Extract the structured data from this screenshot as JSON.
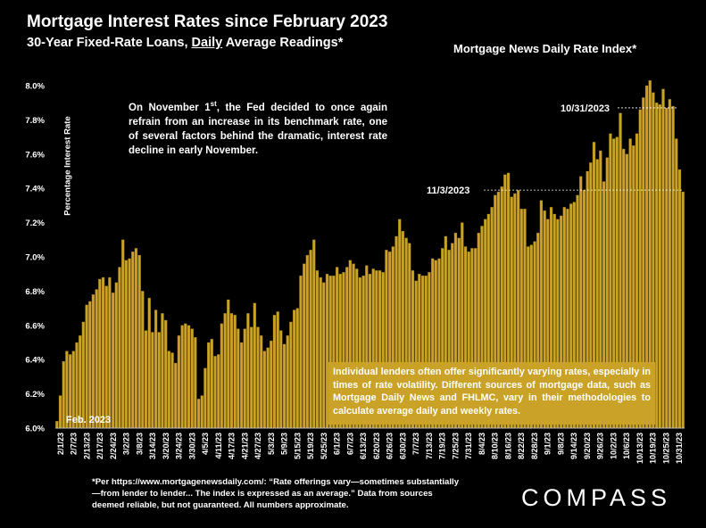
{
  "header": {
    "title": "Mortgage Interest Rates since February 2023",
    "subtitle_pre": "30-Year Fixed-Rate Loans, ",
    "subtitle_underlined": "Daily",
    "subtitle_post": " Average Readings*",
    "index_title": "Mortgage News Daily Rate Index*"
  },
  "annotation": {
    "pre": "On November 1",
    "sup": "st",
    "post": ", the Fed decided to once again refrain from an increase in its benchmark rate, one of several factors behind the dramatic, interest rate decline in early November."
  },
  "note": "Individual lenders often offer significantly varying rates, especially in times of rate volatility. Different sources of mortgage data, such as Mortgage Daily News and FHLMC, vary in their methodologies to calculate average daily and weekly rates.",
  "footnote": "*Per https://www.mortgagenewsdaily.com/: “Rate offerings vary—sometimes substantially—from lender to lender... The index is expressed as an average.” Data from sources deemed reliable, but not guaranteed. All numbers approximate.",
  "logo": "COMPASS",
  "colors": {
    "bar": "#c9a227",
    "bar_edge": "#8a6a10",
    "background": "#000000"
  },
  "chart_data": {
    "type": "bar",
    "ylabel": "Percentage Interest Rate",
    "ylim": [
      6.0,
      8.0
    ],
    "yticks": [
      "6.0%",
      "6.2%",
      "6.4%",
      "6.6%",
      "6.8%",
      "7.0%",
      "7.2%",
      "7.4%",
      "7.6%",
      "7.8%",
      "8.0%"
    ],
    "xtick_labels": [
      "2/1/23",
      "2/7/23",
      "2/13/23",
      "2/17/23",
      "2/24/23",
      "3/2/23",
      "3/8/23",
      "3/14/23",
      "3/20/23",
      "3/24/23",
      "3/30/23",
      "4/5/23",
      "4/11/23",
      "4/17/23",
      "4/21/23",
      "4/27/23",
      "5/3/23",
      "5/9/23",
      "5/15/23",
      "5/19/23",
      "5/25/23",
      "6/1/23",
      "6/7/23",
      "6/13/23",
      "6/20/23",
      "6/26/23",
      "6/30/23",
      "7/7/23",
      "7/13/23",
      "7/19/23",
      "7/25/23",
      "7/31/23",
      "8/4/23",
      "8/10/23",
      "8/16/23",
      "8/22/23",
      "8/28/23",
      "9/1/23",
      "9/8/23",
      "9/14/23",
      "9/20/23",
      "9/26/23",
      "10/2/23",
      "10/6/23",
      "10/13/23",
      "10/19/23",
      "10/25/23",
      "10/31/23"
    ],
    "values": [
      6.04,
      6.19,
      6.39,
      6.45,
      6.43,
      6.45,
      6.5,
      6.54,
      6.62,
      6.72,
      6.74,
      6.78,
      6.81,
      6.87,
      6.88,
      6.83,
      6.88,
      6.79,
      6.85,
      6.94,
      7.1,
      6.98,
      6.99,
      7.03,
      7.05,
      7.01,
      6.8,
      6.57,
      6.76,
      6.56,
      6.69,
      6.56,
      6.67,
      6.63,
      6.45,
      6.44,
      6.38,
      6.54,
      6.6,
      6.61,
      6.6,
      6.58,
      6.53,
      6.17,
      6.19,
      6.35,
      6.5,
      6.52,
      6.42,
      6.43,
      6.61,
      6.67,
      6.75,
      6.67,
      6.66,
      6.58,
      6.5,
      6.58,
      6.67,
      6.59,
      6.73,
      6.59,
      6.54,
      6.45,
      6.47,
      6.51,
      6.66,
      6.68,
      6.57,
      6.49,
      6.54,
      6.62,
      6.69,
      6.7,
      6.89,
      6.96,
      7.01,
      7.04,
      7.1,
      6.92,
      6.88,
      6.85,
      6.9,
      6.89,
      6.89,
      6.94,
      6.9,
      6.91,
      6.94,
      6.98,
      6.96,
      6.93,
      6.88,
      6.89,
      6.95,
      6.9,
      6.93,
      6.92,
      6.92,
      6.91,
      7.04,
      7.03,
      7.06,
      7.12,
      7.22,
      7.15,
      7.11,
      7.08,
      6.92,
      6.86,
      6.9,
      6.89,
      6.89,
      6.91,
      6.99,
      6.98,
      6.99,
      7.05,
      7.12,
      7.04,
      7.08,
      7.14,
      7.11,
      7.2,
      7.06,
      7.03,
      7.05,
      7.05,
      7.14,
      7.18,
      7.22,
      7.25,
      7.29,
      7.36,
      7.38,
      7.41,
      7.48,
      7.49,
      7.35,
      7.37,
      7.39,
      7.28,
      7.28,
      7.06,
      7.07,
      7.09,
      7.14,
      7.33,
      7.27,
      7.22,
      7.29,
      7.25,
      7.22,
      7.24,
      7.29,
      7.28,
      7.31,
      7.32,
      7.36,
      7.47,
      7.39,
      7.5,
      7.55,
      7.67,
      7.57,
      7.62,
      7.44,
      7.58,
      7.72,
      7.69,
      7.7,
      7.84,
      7.63,
      7.6,
      7.69,
      7.65,
      7.72,
      7.86,
      7.93,
      8.0,
      8.03,
      7.96,
      7.9,
      7.89,
      7.98,
      7.87,
      7.92,
      7.88,
      7.69,
      7.51,
      7.38
    ],
    "annotations": [
      {
        "label": "10/31/2023",
        "value": 7.87
      },
      {
        "label": "11/3/2023",
        "value": 7.39
      }
    ],
    "start_label": "Feb. 2023",
    "grid": false,
    "legend": "none"
  }
}
